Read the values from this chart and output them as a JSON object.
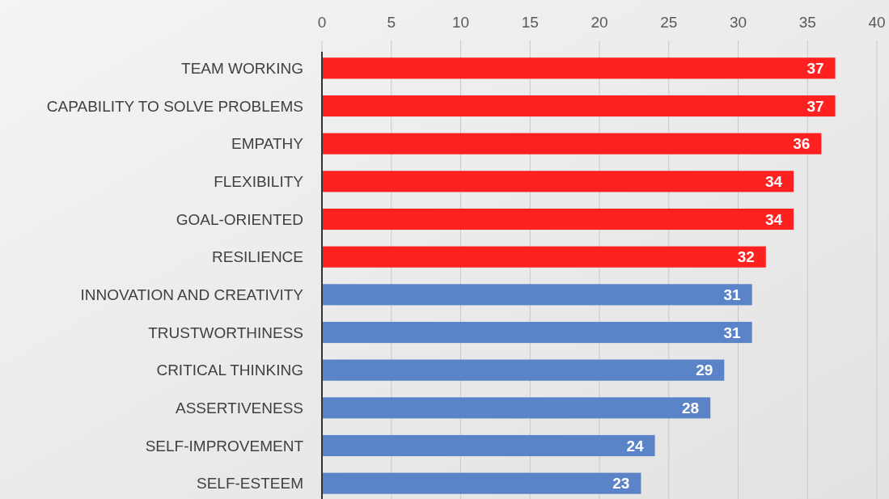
{
  "chart_data": {
    "type": "bar",
    "orientation": "horizontal",
    "categories": [
      "TEAM WORKING",
      "CAPABILITY TO SOLVE PROBLEMS",
      "EMPATHY",
      "FLEXIBILITY",
      "GOAL-ORIENTED",
      "RESILIENCE",
      "INNOVATION AND CREATIVITY",
      "TRUSTWORTHINESS",
      "CRITICAL THINKING",
      "ASSERTIVENESS",
      "SELF-IMPROVEMENT",
      "SELF-ESTEEM"
    ],
    "values": [
      37,
      37,
      36,
      34,
      34,
      32,
      31,
      31,
      29,
      28,
      24,
      23
    ],
    "colors": [
      "#ff2020",
      "#ff2020",
      "#ff2020",
      "#ff2020",
      "#ff2020",
      "#ff2020",
      "#5b84c8",
      "#5b84c8",
      "#5b84c8",
      "#5b84c8",
      "#5b84c8",
      "#5b84c8"
    ],
    "xlim": [
      0,
      40
    ],
    "xticks": [
      0,
      5,
      10,
      15,
      20,
      25,
      30,
      35,
      40
    ],
    "grid": "x",
    "data_labels": true
  }
}
